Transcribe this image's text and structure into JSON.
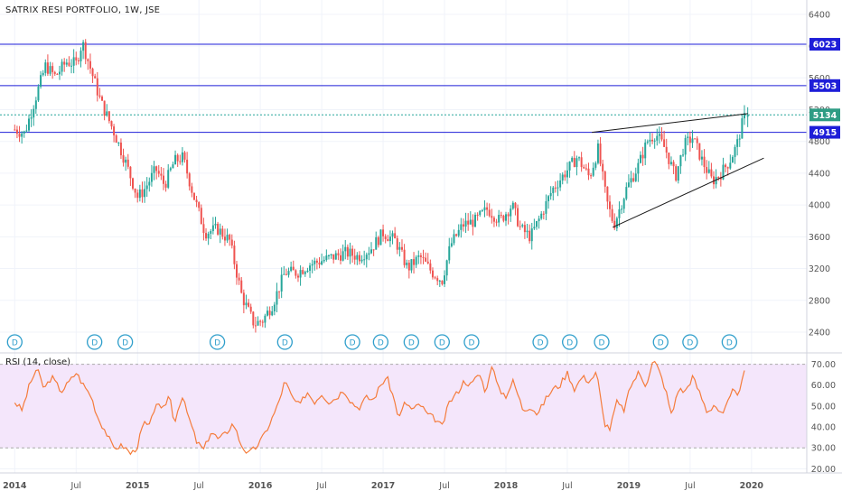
{
  "header": {
    "title": "SATRIX RESI PORTFOLIO, 1W, JSE"
  },
  "rsi_panel": {
    "title": "RSI (14, close)"
  },
  "colors": {
    "up": "#26a69a",
    "down": "#ef5350",
    "level": "#1e1ed8",
    "level_label_bg": "#1e1ed8",
    "last_price_bg": "#2e9c84",
    "last_price_line": "#26a69a",
    "trendline": "#1a1a1a",
    "rsi_line": "#f57c3c",
    "rsi_band": "#f4e6fb",
    "rsi_band_border": "#aaaaaa",
    "grid": "#f0f3fa",
    "axis_text": "#555555",
    "dividend_marker": "#2e9ecb"
  },
  "chart_data": [
    {
      "type": "candlestick",
      "title": "SATRIX RESI PORTFOLIO, 1W, JSE",
      "x_axis": {
        "ticks": [
          "2014",
          "Jul",
          "2015",
          "Jul",
          "2016",
          "Jul",
          "2017",
          "Jul",
          "2018",
          "Jul",
          "2019",
          "Jul",
          "2020"
        ]
      },
      "y_axis": {
        "ticks": [
          2400,
          2800,
          3200,
          3600,
          4000,
          4400,
          4800,
          5200,
          5600,
          6000,
          6400
        ],
        "range": [
          2150,
          6580
        ]
      },
      "grid": true,
      "price_levels": [
        6023,
        5503,
        4915
      ],
      "last_price": 5134,
      "price_path_anchors": [
        {
          "t": 2014.0,
          "v": 4950
        },
        {
          "t": 2014.08,
          "v": 4900
        },
        {
          "t": 2014.17,
          "v": 5350
        },
        {
          "t": 2014.25,
          "v": 5750
        },
        {
          "t": 2014.33,
          "v": 5620
        },
        {
          "t": 2014.42,
          "v": 5800
        },
        {
          "t": 2014.5,
          "v": 5780
        },
        {
          "t": 2014.55,
          "v": 6050
        },
        {
          "t": 2014.62,
          "v": 5700
        },
        {
          "t": 2014.7,
          "v": 5300
        },
        {
          "t": 2014.8,
          "v": 4950
        },
        {
          "t": 2014.9,
          "v": 4550
        },
        {
          "t": 2015.0,
          "v": 4100
        },
        {
          "t": 2015.05,
          "v": 4180
        },
        {
          "t": 2015.15,
          "v": 4450
        },
        {
          "t": 2015.22,
          "v": 4250
        },
        {
          "t": 2015.3,
          "v": 4550
        },
        {
          "t": 2015.37,
          "v": 4600
        },
        {
          "t": 2015.45,
          "v": 4150
        },
        {
          "t": 2015.55,
          "v": 3650
        },
        {
          "t": 2015.65,
          "v": 3700
        },
        {
          "t": 2015.75,
          "v": 3550
        },
        {
          "t": 2015.85,
          "v": 2850
        },
        {
          "t": 2015.95,
          "v": 2500
        },
        {
          "t": 2016.02,
          "v": 2550
        },
        {
          "t": 2016.1,
          "v": 2750
        },
        {
          "t": 2016.2,
          "v": 3150
        },
        {
          "t": 2016.3,
          "v": 3150
        },
        {
          "t": 2016.4,
          "v": 3250
        },
        {
          "t": 2016.5,
          "v": 3300
        },
        {
          "t": 2016.6,
          "v": 3350
        },
        {
          "t": 2016.7,
          "v": 3400
        },
        {
          "t": 2016.8,
          "v": 3350
        },
        {
          "t": 2016.9,
          "v": 3450
        },
        {
          "t": 2017.0,
          "v": 3650
        },
        {
          "t": 2017.1,
          "v": 3550
        },
        {
          "t": 2017.2,
          "v": 3200
        },
        {
          "t": 2017.3,
          "v": 3350
        },
        {
          "t": 2017.4,
          "v": 3150
        },
        {
          "t": 2017.48,
          "v": 3050
        },
        {
          "t": 2017.55,
          "v": 3500
        },
        {
          "t": 2017.65,
          "v": 3750
        },
        {
          "t": 2017.75,
          "v": 3800
        },
        {
          "t": 2017.85,
          "v": 3950
        },
        {
          "t": 2017.95,
          "v": 3800
        },
        {
          "t": 2018.05,
          "v": 4000
        },
        {
          "t": 2018.12,
          "v": 3700
        },
        {
          "t": 2018.2,
          "v": 3600
        },
        {
          "t": 2018.28,
          "v": 3850
        },
        {
          "t": 2018.38,
          "v": 4200
        },
        {
          "t": 2018.48,
          "v": 4400
        },
        {
          "t": 2018.58,
          "v": 4600
        },
        {
          "t": 2018.68,
          "v": 4350
        },
        {
          "t": 2018.75,
          "v": 4700
        },
        {
          "t": 2018.82,
          "v": 4050
        },
        {
          "t": 2018.88,
          "v": 3750
        },
        {
          "t": 2018.98,
          "v": 4200
        },
        {
          "t": 2019.08,
          "v": 4500
        },
        {
          "t": 2019.15,
          "v": 4800
        },
        {
          "t": 2019.22,
          "v": 4900
        },
        {
          "t": 2019.3,
          "v": 4700
        },
        {
          "t": 2019.38,
          "v": 4350
        },
        {
          "t": 2019.45,
          "v": 4750
        },
        {
          "t": 2019.52,
          "v": 4850
        },
        {
          "t": 2019.6,
          "v": 4550
        },
        {
          "t": 2019.68,
          "v": 4300
        },
        {
          "t": 2019.75,
          "v": 4400
        },
        {
          "t": 2019.82,
          "v": 4550
        },
        {
          "t": 2019.88,
          "v": 4750
        },
        {
          "t": 2019.92,
          "v": 5000
        },
        {
          "t": 2019.95,
          "v": 5134
        }
      ]
    },
    {
      "type": "line",
      "title": "RSI (14, close)",
      "y_axis": {
        "ticks": [
          20,
          30,
          40,
          50,
          60,
          70
        ],
        "tick_labels": [
          "20.00",
          "30.00",
          "40.00",
          "50.00",
          "60.00",
          "70.00"
        ],
        "range": [
          18,
          75
        ]
      },
      "band": [
        30,
        70
      ],
      "rsi_anchors": [
        {
          "t": 2014.0,
          "v": 52
        },
        {
          "t": 2014.06,
          "v": 48
        },
        {
          "t": 2014.12,
          "v": 60
        },
        {
          "t": 2014.18,
          "v": 68
        },
        {
          "t": 2014.24,
          "v": 58
        },
        {
          "t": 2014.3,
          "v": 64
        },
        {
          "t": 2014.38,
          "v": 57
        },
        {
          "t": 2014.45,
          "v": 62
        },
        {
          "t": 2014.5,
          "v": 66
        },
        {
          "t": 2014.56,
          "v": 60
        },
        {
          "t": 2014.62,
          "v": 55
        },
        {
          "t": 2014.68,
          "v": 44
        },
        {
          "t": 2014.74,
          "v": 38
        },
        {
          "t": 2014.8,
          "v": 30
        },
        {
          "t": 2014.88,
          "v": 31
        },
        {
          "t": 2014.95,
          "v": 27
        },
        {
          "t": 2015.0,
          "v": 31
        },
        {
          "t": 2015.05,
          "v": 42
        },
        {
          "t": 2015.1,
          "v": 40
        },
        {
          "t": 2015.15,
          "v": 52
        },
        {
          "t": 2015.2,
          "v": 47
        },
        {
          "t": 2015.26,
          "v": 56
        },
        {
          "t": 2015.3,
          "v": 42
        },
        {
          "t": 2015.36,
          "v": 55
        },
        {
          "t": 2015.42,
          "v": 44
        },
        {
          "t": 2015.48,
          "v": 33
        },
        {
          "t": 2015.54,
          "v": 29
        },
        {
          "t": 2015.6,
          "v": 38
        },
        {
          "t": 2015.66,
          "v": 34
        },
        {
          "t": 2015.72,
          "v": 37
        },
        {
          "t": 2015.78,
          "v": 42
        },
        {
          "t": 2015.84,
          "v": 32
        },
        {
          "t": 2015.9,
          "v": 27
        },
        {
          "t": 2015.96,
          "v": 30
        },
        {
          "t": 2016.02,
          "v": 35
        },
        {
          "t": 2016.08,
          "v": 42
        },
        {
          "t": 2016.14,
          "v": 50
        },
        {
          "t": 2016.2,
          "v": 62
        },
        {
          "t": 2016.26,
          "v": 54
        },
        {
          "t": 2016.32,
          "v": 50
        },
        {
          "t": 2016.38,
          "v": 57
        },
        {
          "t": 2016.44,
          "v": 52
        },
        {
          "t": 2016.5,
          "v": 56
        },
        {
          "t": 2016.56,
          "v": 52
        },
        {
          "t": 2016.62,
          "v": 54
        },
        {
          "t": 2016.68,
          "v": 58
        },
        {
          "t": 2016.74,
          "v": 52
        },
        {
          "t": 2016.8,
          "v": 49
        },
        {
          "t": 2016.86,
          "v": 54
        },
        {
          "t": 2016.92,
          "v": 53
        },
        {
          "t": 2016.98,
          "v": 60
        },
        {
          "t": 2017.03,
          "v": 64
        },
        {
          "t": 2017.08,
          "v": 55
        },
        {
          "t": 2017.13,
          "v": 44
        },
        {
          "t": 2017.18,
          "v": 52
        },
        {
          "t": 2017.24,
          "v": 48
        },
        {
          "t": 2017.3,
          "v": 51
        },
        {
          "t": 2017.36,
          "v": 46
        },
        {
          "t": 2017.42,
          "v": 44
        },
        {
          "t": 2017.48,
          "v": 40
        },
        {
          "t": 2017.54,
          "v": 52
        },
        {
          "t": 2017.6,
          "v": 56
        },
        {
          "t": 2017.66,
          "v": 62
        },
        {
          "t": 2017.72,
          "v": 60
        },
        {
          "t": 2017.78,
          "v": 66
        },
        {
          "t": 2017.84,
          "v": 56
        },
        {
          "t": 2017.88,
          "v": 71
        },
        {
          "t": 2017.94,
          "v": 58
        },
        {
          "t": 2018.0,
          "v": 55
        },
        {
          "t": 2018.06,
          "v": 62
        },
        {
          "t": 2018.1,
          "v": 55
        },
        {
          "t": 2018.14,
          "v": 48
        },
        {
          "t": 2018.2,
          "v": 50
        },
        {
          "t": 2018.26,
          "v": 46
        },
        {
          "t": 2018.32,
          "v": 53
        },
        {
          "t": 2018.38,
          "v": 58
        },
        {
          "t": 2018.44,
          "v": 60
        },
        {
          "t": 2018.5,
          "v": 66
        },
        {
          "t": 2018.56,
          "v": 58
        },
        {
          "t": 2018.62,
          "v": 64
        },
        {
          "t": 2018.68,
          "v": 62
        },
        {
          "t": 2018.74,
          "v": 66
        },
        {
          "t": 2018.8,
          "v": 42
        },
        {
          "t": 2018.85,
          "v": 39
        },
        {
          "t": 2018.9,
          "v": 52
        },
        {
          "t": 2018.96,
          "v": 48
        },
        {
          "t": 2019.02,
          "v": 60
        },
        {
          "t": 2019.08,
          "v": 66
        },
        {
          "t": 2019.14,
          "v": 60
        },
        {
          "t": 2019.2,
          "v": 72
        },
        {
          "t": 2019.24,
          "v": 68
        },
        {
          "t": 2019.3,
          "v": 58
        },
        {
          "t": 2019.35,
          "v": 45
        },
        {
          "t": 2019.4,
          "v": 58
        },
        {
          "t": 2019.46,
          "v": 57
        },
        {
          "t": 2019.52,
          "v": 64
        },
        {
          "t": 2019.58,
          "v": 56
        },
        {
          "t": 2019.64,
          "v": 47
        },
        {
          "t": 2019.7,
          "v": 51
        },
        {
          "t": 2019.76,
          "v": 45
        },
        {
          "t": 2019.82,
          "v": 53
        },
        {
          "t": 2019.86,
          "v": 59
        },
        {
          "t": 2019.9,
          "v": 55
        },
        {
          "t": 2019.93,
          "v": 64
        },
        {
          "t": 2019.96,
          "v": 68
        }
      ]
    }
  ],
  "dividend_markers": {
    "label": "D",
    "times": [
      2014.0,
      2014.65,
      2014.9,
      2015.65,
      2016.2,
      2016.75,
      2016.98,
      2017.23,
      2017.48,
      2017.72,
      2018.28,
      2018.52,
      2018.78,
      2019.26,
      2019.5,
      2019.82
    ]
  }
}
